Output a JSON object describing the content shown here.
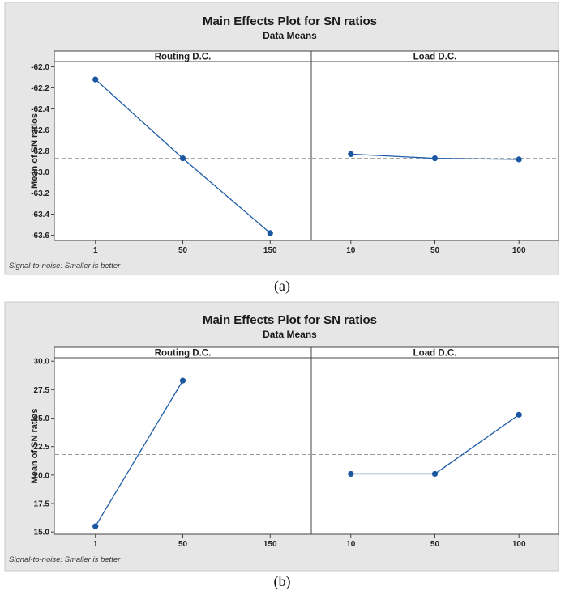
{
  "chart_data": [
    {
      "type": "line",
      "title": "Main Effects Plot for SN ratios",
      "subtitle": "Data Means",
      "ylabel": "Mean of SN ratios",
      "ylim": [
        -63.65,
        -61.95
      ],
      "yticks": [
        "-62.0",
        "-62.2",
        "-62.4",
        "-62.6",
        "-62.8",
        "-63.0",
        "-63.2",
        "-63.4",
        "-63.6"
      ],
      "reference_line": -62.87,
      "footnote": "Signal-to-noise: Smaller is better",
      "caption": "(a)",
      "panels": [
        {
          "name": "Routing D.C.",
          "categories": [
            "1",
            "50",
            "150"
          ],
          "values": [
            -62.12,
            -62.87,
            -63.58
          ]
        },
        {
          "name": "Load D.C.",
          "categories": [
            "10",
            "50",
            "100"
          ],
          "values": [
            -62.83,
            -62.87,
            -62.88
          ]
        }
      ]
    },
    {
      "type": "line",
      "title": "Main Effects Plot for SN ratios",
      "subtitle": "Data Means",
      "ylabel": "Mean of SN ratios",
      "ylim": [
        14.8,
        30.3
      ],
      "yticks": [
        "30.0",
        "27.5",
        "25.0",
        "22.5",
        "20.0",
        "17.5",
        "15.0"
      ],
      "reference_line": 21.8,
      "footnote": "Signal-to-noise: Smaller is better",
      "caption": "(b)",
      "panels": [
        {
          "name": "Routing D.C.",
          "categories": [
            "1",
            "50",
            "150"
          ],
          "values": [
            15.5,
            28.3,
            null
          ]
        },
        {
          "name": "Load D.C.",
          "categories": [
            "10",
            "50",
            "100"
          ],
          "values": [
            20.1,
            20.1,
            25.3
          ]
        }
      ]
    }
  ],
  "colors": {
    "background": "#e6e6e6",
    "plot": "#ffffff",
    "line": "#1f5da8",
    "marker": "#1a57a0",
    "reference": "#9a9a9a",
    "border": "#444444"
  }
}
